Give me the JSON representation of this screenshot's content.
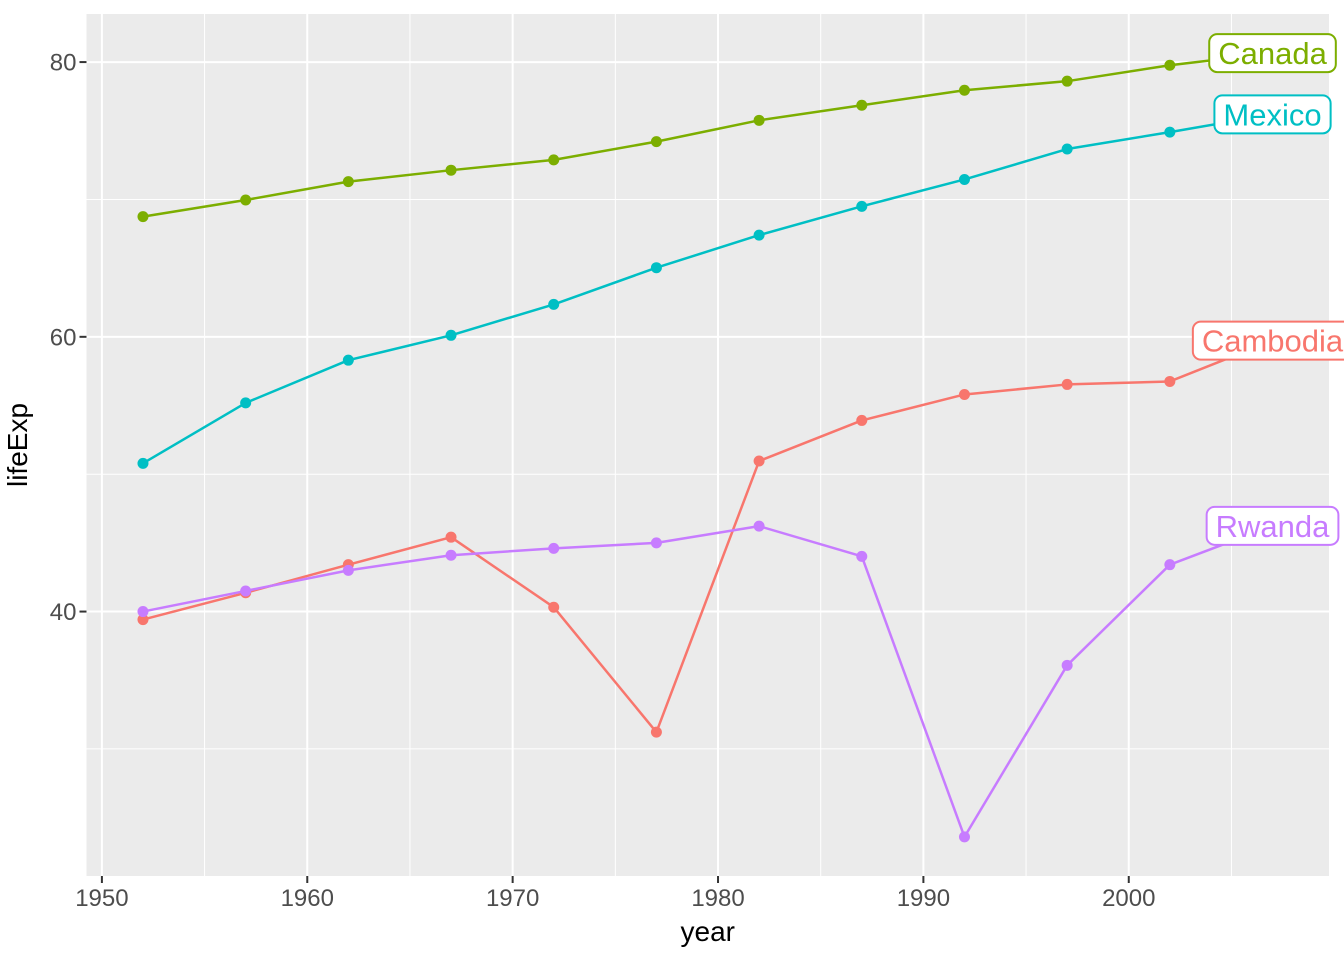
{
  "chart_data": {
    "type": "line",
    "title": "",
    "xlabel": "year",
    "ylabel": "lifeExp",
    "x": [
      1952,
      1957,
      1962,
      1967,
      1972,
      1977,
      1982,
      1987,
      1992,
      1997,
      2002,
      2007
    ],
    "series": [
      {
        "name": "Cambodia",
        "color": "#F8766D",
        "values": [
          39.417,
          41.366,
          43.415,
          45.415,
          40.317,
          31.22,
          50.957,
          53.914,
          55.803,
          56.534,
          56.752,
          59.723
        ]
      },
      {
        "name": "Canada",
        "color": "#7CAE00",
        "values": [
          68.75,
          69.96,
          71.3,
          72.13,
          72.88,
          74.21,
          75.76,
          76.86,
          77.95,
          78.61,
          79.77,
          80.653
        ]
      },
      {
        "name": "Mexico",
        "color": "#00BFC4",
        "values": [
          50.789,
          55.19,
          58.299,
          60.11,
          62.361,
          65.032,
          67.405,
          69.498,
          71.455,
          73.67,
          74.902,
          76.195
        ]
      },
      {
        "name": "Rwanda",
        "color": "#C77CFF",
        "values": [
          40.0,
          41.5,
          43.0,
          44.1,
          44.6,
          45.0,
          46.218,
          44.02,
          23.599,
          36.087,
          43.413,
          46.242
        ]
      }
    ],
    "direct_labels": [
      "Canada",
      "Mexico",
      "Cambodia",
      "Rwanda"
    ],
    "x_ticks": [
      1950,
      1960,
      1970,
      1980,
      1990,
      2000
    ],
    "y_ticks": [
      40,
      60,
      80
    ],
    "x_minor_ticks": [
      1955,
      1965,
      1975,
      1985,
      1995,
      2005
    ],
    "y_minor_ticks": [
      30,
      50,
      70
    ],
    "xlim": [
      1949.25,
      2009.75
    ],
    "ylim": [
      20.75,
      83.5
    ],
    "grid": true,
    "legend_position": "direct-labels-right",
    "panel_background": "#EBEBEB",
    "grid_color": "#FFFFFF",
    "tick_mark_color": "#333333",
    "tick_label_color": "#4D4D4D",
    "axis_title_color": "#000000",
    "label_box_fill": "#FFFFFF"
  }
}
